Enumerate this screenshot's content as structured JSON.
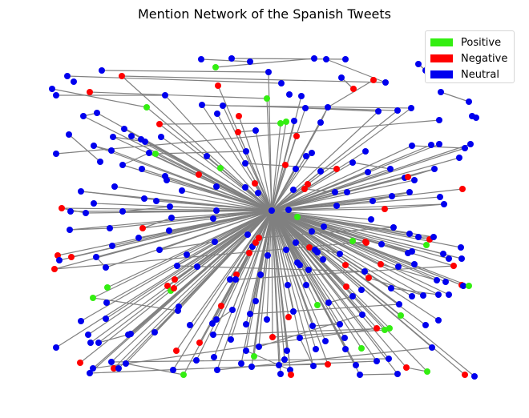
{
  "title": "Mention Network of the Spanish Tweets",
  "legend": [
    {
      "label": "Positive",
      "color": "#33ee11"
    },
    {
      "label": "Negative",
      "color": "#ff0000"
    },
    {
      "label": "Neutral",
      "color": "#0000ee"
    }
  ],
  "edge_color": "#808080",
  "chart_data": {
    "type": "network",
    "title": "Mention Network of the Spanish Tweets",
    "categories": [
      "Positive",
      "Negative",
      "Neutral"
    ],
    "center_node": {
      "sentiment": "Neutral"
    },
    "node_counts": {
      "Positive": 25,
      "Negative": 50,
      "Neutral": 235
    },
    "edge_structure": "star (most nodes link to the central node) plus a set of peripheral edges between outer nodes",
    "grid": false
  }
}
